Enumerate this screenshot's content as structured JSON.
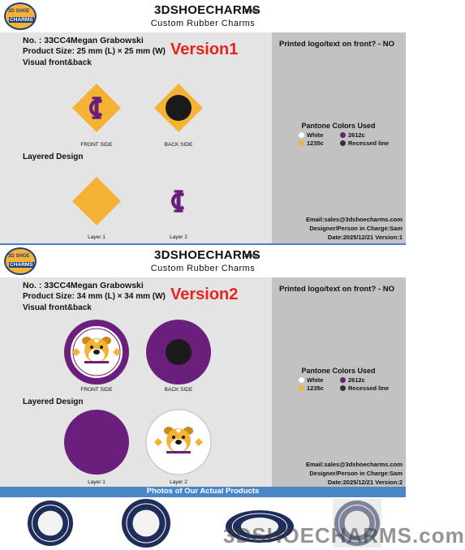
{
  "header": {
    "brand": "3DSHOECHARMS",
    "domain": ".com",
    "subtitle": "Custom Rubber Charms",
    "logo_top": "3D SHOE",
    "logo_bottom": "CHARMS"
  },
  "sheets": [
    {
      "number": "No. : 33CC4Megan Grabowski",
      "size": "Product Size: 25 mm (L) × 25 mm (W)",
      "visual_heading": "Visual front&back",
      "version_label": "Version1",
      "front_label": "FRONT SIDE",
      "back_label": "BACK SIDE",
      "layered_heading": "Layered Design",
      "layer1_label": "Layer 1",
      "layer2_label": "Layer 2",
      "printed_note": "Printed logo/text on front? - NO",
      "pantone_heading": "Pantone Colors Used",
      "pantone": [
        {
          "name": "White",
          "color": "#ffffff"
        },
        {
          "name": "2612c",
          "color": "#6b1f7c"
        },
        {
          "name": "1235c",
          "color": "#f5b335"
        },
        {
          "name": "Recessed line",
          "color": "#333333"
        }
      ],
      "email": "Email:sales@3dshoecharms.com",
      "designer": "Designer/Person in Charge:Sam",
      "date": "Date:2025/12/21  Version:1"
    },
    {
      "number": "No. : 33CC4Megan Grabowski",
      "size": "Product Size: 34 mm (L) × 34 mm (W)",
      "visual_heading": "Visual front&back",
      "version_label": "Version2",
      "front_label": "FRONT SIDE",
      "back_label": "BACK SIDE",
      "layered_heading": "Layered Design",
      "layer1_label": "Layer 1",
      "layer2_label": "Layer 2",
      "printed_note": "Printed logo/text on front? - NO",
      "pantone_heading": "Pantone Colors Used",
      "pantone": [
        {
          "name": "White",
          "color": "#ffffff"
        },
        {
          "name": "2612c",
          "color": "#6b1f7c"
        },
        {
          "name": "1235c",
          "color": "#f5b335"
        },
        {
          "name": "Recessed line",
          "color": "#333333"
        }
      ],
      "email": "Email:sales@3dshoecharms.com",
      "designer": "Designer/Person in Charge:Sam",
      "date": "Date:2025/12/21  Version:2"
    }
  ],
  "photos": {
    "heading": "Photos of Our Actual Products",
    "watermark": "3DSHOECHARMS.com"
  }
}
